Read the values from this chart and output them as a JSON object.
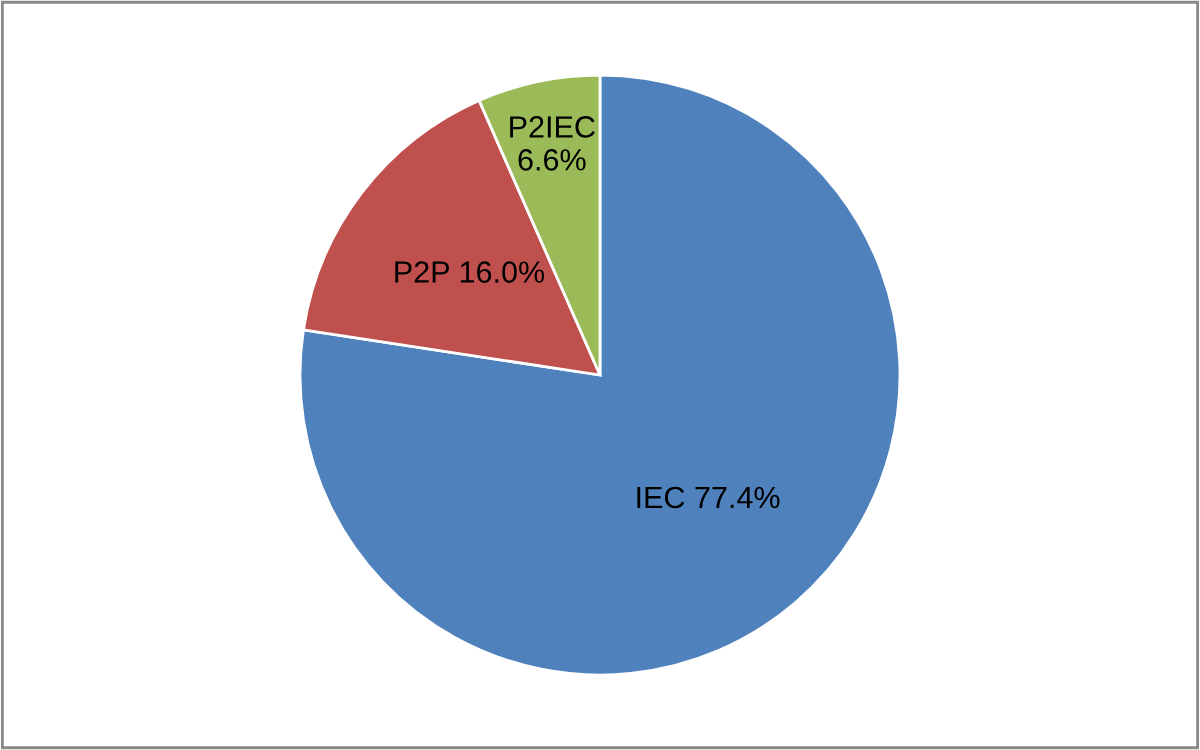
{
  "chart_data": {
    "type": "pie",
    "categories": [
      "IEC",
      "P2P",
      "P2IEC"
    ],
    "values": [
      77.4,
      16.0,
      6.6
    ],
    "value_labels": [
      "77.4%",
      "16.0%",
      "6.6%"
    ],
    "colors": [
      "#4f81bd",
      "#c0504d",
      "#9bbb59"
    ],
    "legend": false
  }
}
